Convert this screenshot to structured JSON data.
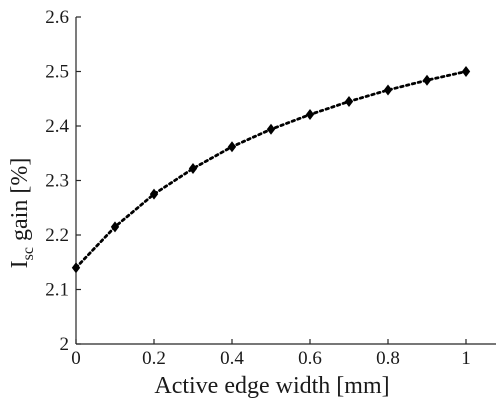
{
  "chart_data": {
    "type": "line",
    "xlabel": "Active edge width [mm]",
    "ylabel": {
      "main": "I",
      "subscript": "sc",
      "rest": " gain [%]"
    },
    "xlim": [
      0,
      1
    ],
    "ylim": [
      2,
      2.6
    ],
    "xticks": [
      0,
      0.2,
      0.4,
      0.6,
      0.8,
      1
    ],
    "xtick_labels": [
      "0",
      "0.2",
      "0.4",
      "0.6",
      "0.8",
      "1"
    ],
    "yticks": [
      2,
      2.1,
      2.2,
      2.3,
      2.4,
      2.5,
      2.6
    ],
    "ytick_labels": [
      "2",
      "2.1",
      "2.2",
      "2.3",
      "2.4",
      "2.5",
      "2.6"
    ],
    "grid": false,
    "line_style": "dotted",
    "marker": "diamond",
    "series": [
      {
        "x": [
          0,
          0.1,
          0.2,
          0.3,
          0.4,
          0.5,
          0.6,
          0.7,
          0.8,
          0.9,
          1.0
        ],
        "y": [
          2.14,
          2.215,
          2.275,
          2.322,
          2.362,
          2.394,
          2.421,
          2.445,
          2.466,
          2.484,
          2.5
        ]
      }
    ],
    "colors": {
      "series": "#000000",
      "axis": "#262626",
      "text": "#1a1a1a"
    }
  }
}
